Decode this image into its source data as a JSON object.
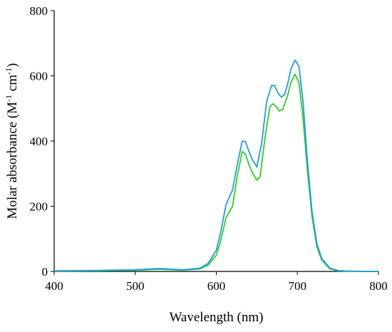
{
  "chart_data": {
    "type": "line",
    "title": "",
    "xlabel": "Wavelength (nm)",
    "ylabel_parts": [
      "Molar absorbance (M",
      "-1",
      " cm",
      "-1",
      ")"
    ],
    "xlim": [
      400,
      800
    ],
    "ylim": [
      0,
      800
    ],
    "xticks": [
      400,
      500,
      600,
      700,
      800
    ],
    "yticks": [
      0,
      200,
      400,
      600,
      800
    ],
    "grid": false,
    "legend": "none",
    "series": [
      {
        "color": "#1f9be8",
        "x": [
          400,
          450,
          500,
          530,
          560,
          580,
          590,
          600,
          605,
          612,
          620,
          626,
          632,
          636,
          640,
          644,
          650,
          656,
          662,
          668,
          672,
          676,
          680,
          684,
          688,
          692,
          697,
          702,
          707,
          712,
          718,
          724,
          730,
          740,
          750,
          760,
          780,
          800
        ],
        "y": [
          2,
          3,
          5,
          9,
          5,
          10,
          25,
          65,
          115,
          205,
          250,
          330,
          400,
          398,
          370,
          345,
          320,
          395,
          520,
          570,
          570,
          548,
          535,
          542,
          575,
          620,
          648,
          630,
          520,
          350,
          185,
          85,
          40,
          10,
          3,
          1,
          0,
          0
        ]
      },
      {
        "color": "#2bd11c",
        "x": [
          400,
          450,
          500,
          530,
          560,
          580,
          590,
          600,
          605,
          612,
          620,
          626,
          632,
          636,
          640,
          644,
          650,
          654,
          660,
          666,
          670,
          674,
          678,
          682,
          688,
          692,
          697,
          702,
          707,
          712,
          718,
          724,
          730,
          740,
          750,
          760,
          780,
          800
        ],
        "y": [
          1,
          2,
          4,
          7,
          4,
          8,
          20,
          50,
          90,
          165,
          200,
          295,
          368,
          360,
          330,
          305,
          280,
          290,
          410,
          505,
          515,
          505,
          492,
          498,
          540,
          580,
          605,
          580,
          470,
          320,
          170,
          75,
          35,
          8,
          2,
          1,
          0,
          0
        ]
      }
    ]
  }
}
